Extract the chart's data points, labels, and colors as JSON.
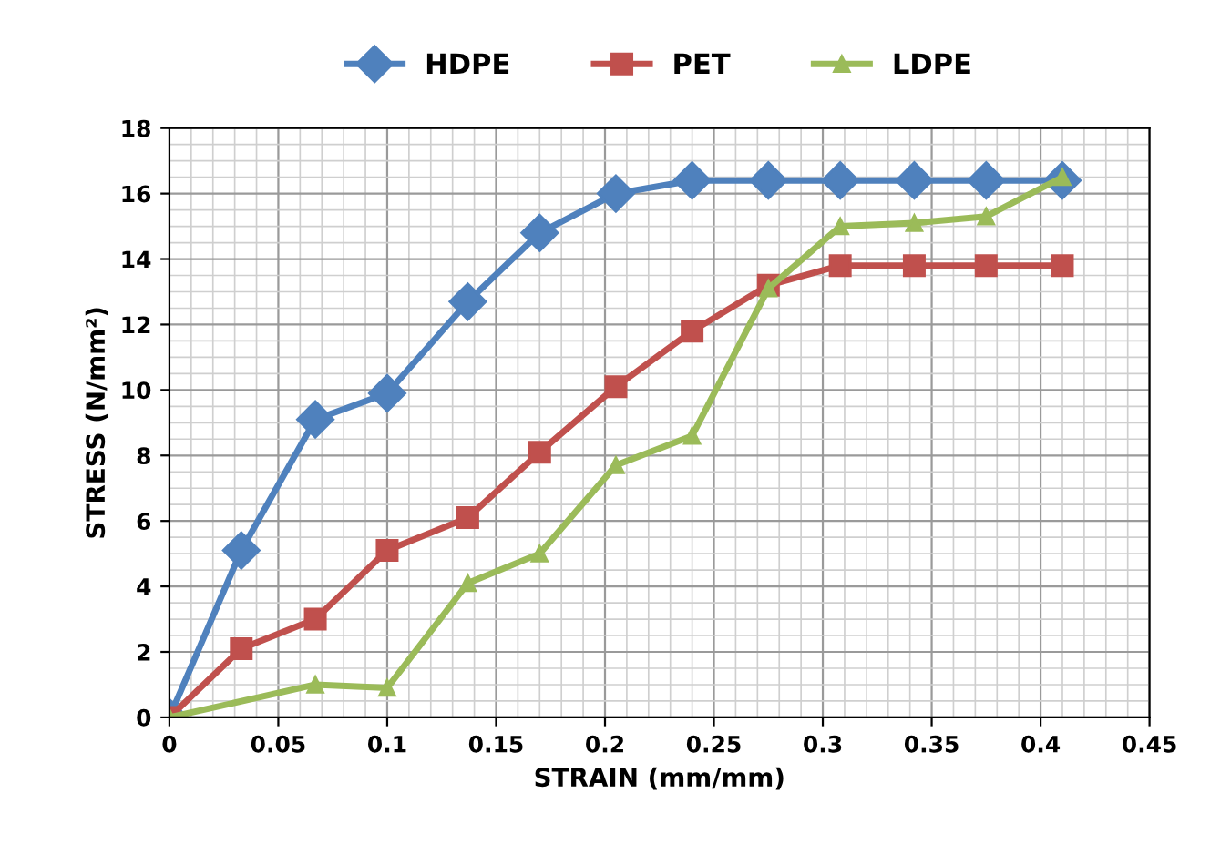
{
  "chart_data": {
    "type": "line",
    "xlabel": "STRAIN (mm/mm)",
    "ylabel": "STRESS (N/mm²)",
    "x": [
      0,
      0.033,
      0.067,
      0.1,
      0.137,
      0.17,
      0.205,
      0.24,
      0.275,
      0.308,
      0.342,
      0.375,
      0.41
    ],
    "series": [
      {
        "name": "HDPE",
        "color": "#4f81bd",
        "marker": "diamond",
        "values": [
          0,
          5.1,
          9.1,
          9.9,
          12.7,
          14.8,
          16.0,
          16.4,
          16.4,
          16.4,
          16.4,
          16.4,
          16.4
        ]
      },
      {
        "name": "PET",
        "color": "#c0504d",
        "marker": "square",
        "values": [
          0,
          2.1,
          3.0,
          5.1,
          6.1,
          8.1,
          10.1,
          11.8,
          13.2,
          13.8,
          13.8,
          13.8,
          13.8
        ]
      },
      {
        "name": "LDPE",
        "color": "#9bbb59",
        "marker": "triangle",
        "x": [
          0,
          0.067,
          0.1,
          0.137,
          0.17,
          0.205,
          0.24,
          0.275,
          0.308,
          0.342,
          0.375,
          0.41
        ],
        "values": [
          0,
          1.0,
          0.9,
          4.1,
          5.0,
          7.7,
          8.6,
          13.1,
          15.0,
          15.1,
          15.3,
          16.5
        ]
      }
    ],
    "xlim": [
      0,
      0.45
    ],
    "xticks": [
      0,
      0.05,
      0.1,
      0.15,
      0.2,
      0.25,
      0.3,
      0.35,
      0.4,
      0.45
    ],
    "ylim": [
      0,
      18
    ],
    "yticks": [
      0,
      2,
      4,
      6,
      8,
      10,
      12,
      14,
      16,
      18
    ],
    "grid": true,
    "legend": "top"
  }
}
